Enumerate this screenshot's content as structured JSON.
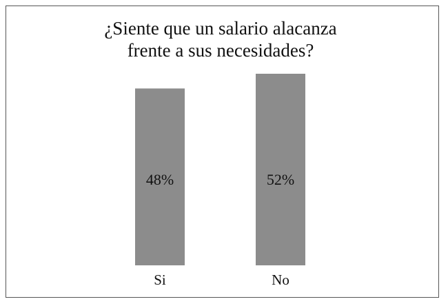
{
  "chart_data": {
    "type": "bar",
    "title": [
      "¿Siente que un salario alacanza",
      "frente a sus necesidades?"
    ],
    "categories": [
      "Si",
      "No"
    ],
    "values": [
      48,
      52
    ],
    "value_labels": [
      "48%",
      "52%"
    ],
    "color": "#8c8c8c"
  }
}
